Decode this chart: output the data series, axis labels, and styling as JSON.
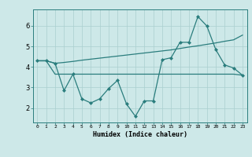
{
  "line1_x": [
    0,
    1,
    2,
    3,
    4,
    5,
    6,
    7,
    8,
    9,
    10,
    11,
    12,
    13,
    14,
    15,
    16,
    17,
    18,
    19,
    20,
    21,
    22,
    23
  ],
  "line1_y": [
    4.3,
    4.3,
    4.18,
    4.22,
    4.27,
    4.33,
    4.38,
    4.43,
    4.48,
    4.53,
    4.58,
    4.63,
    4.68,
    4.73,
    4.78,
    4.83,
    4.9,
    4.97,
    5.03,
    5.1,
    5.17,
    5.25,
    5.32,
    5.55
  ],
  "line2_x": [
    0,
    1,
    2,
    3,
    4,
    5,
    6,
    7,
    8,
    9,
    10,
    11,
    12,
    13,
    14,
    15,
    16,
    17,
    18,
    19,
    20,
    21,
    22,
    23
  ],
  "line2_y": [
    4.3,
    4.3,
    3.65,
    3.65,
    3.65,
    3.65,
    3.65,
    3.65,
    3.65,
    3.65,
    3.65,
    3.65,
    3.65,
    3.65,
    3.65,
    3.65,
    3.65,
    3.65,
    3.65,
    3.65,
    3.65,
    3.65,
    3.65,
    3.6
  ],
  "line3_x": [
    0,
    1,
    2,
    3,
    4,
    5,
    6,
    7,
    8,
    9,
    10,
    11,
    12,
    13,
    14,
    15,
    16,
    17,
    18,
    19,
    20,
    21,
    22,
    23
  ],
  "line3_y": [
    4.3,
    4.3,
    4.18,
    2.85,
    3.65,
    2.45,
    2.25,
    2.45,
    2.95,
    3.35,
    2.2,
    1.6,
    2.35,
    2.35,
    4.35,
    4.45,
    5.2,
    5.2,
    6.45,
    6.0,
    4.85,
    4.1,
    3.95,
    3.6
  ],
  "line_color": "#2a7d7d",
  "bg_color": "#cde8e8",
  "grid_color": "#aacfcf",
  "xlabel": "Humidex (Indice chaleur)",
  "xlim": [
    -0.5,
    23.5
  ],
  "ylim": [
    1.3,
    6.8
  ],
  "yticks": [
    2,
    3,
    4,
    5,
    6
  ],
  "xticks": [
    0,
    1,
    2,
    3,
    4,
    5,
    6,
    7,
    8,
    9,
    10,
    11,
    12,
    13,
    14,
    15,
    16,
    17,
    18,
    19,
    20,
    21,
    22,
    23
  ],
  "xtick_labels": [
    "0",
    "1",
    "2",
    "3",
    "4",
    "5",
    "6",
    "7",
    "8",
    "9",
    "10",
    "11",
    "12",
    "13",
    "14",
    "15",
    "16",
    "17",
    "18",
    "19",
    "20",
    "21",
    "22",
    "23"
  ]
}
